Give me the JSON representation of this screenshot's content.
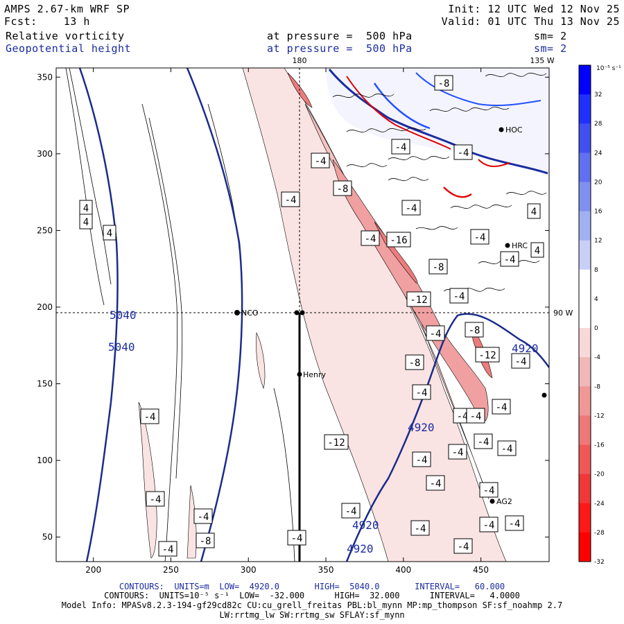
{
  "header": {
    "model": "AMPS 2.67-km WRF SP",
    "fcst": "Fcst:    13 h",
    "init": "Init: 12 UTC Wed 12 Nov 25",
    "valid": "Valid: 01 UTC Thu 13 Nov 25",
    "field1": "Relative vorticity",
    "level1": "at pressure =  500 hPa",
    "sm1": "sm= 2",
    "field2": "Geopotential height",
    "level2": "at pressure =  500 hPa",
    "sm2": "sm= 2"
  },
  "footer": {
    "line1": "CONTOURS:  UNITS=m  LOW=  4920.0       HIGH=  5040.0       INTERVAL=   60.000",
    "line2": "CONTOURS:  UNITS=10⁻⁵ s⁻¹  LOW=  -32.000      HIGH=  32.000      INTERVAL=   4.0000",
    "line3": "Model Info: MPASv8.2.3-194-gf29cd82c CU:cu_grell_freitas PBL:bl_mynn MP:mp_thompson SF:sf_noahmp 2.7",
    "line4": "LW:rrtmg_lw SW:rrtmg_sw SFLAY:sf_mynn"
  },
  "colorbar": {
    "units": "10⁻⁵ s⁻¹",
    "ticks": [
      "32",
      "28",
      "24",
      "20",
      "16",
      "12",
      "8",
      "4",
      "0",
      "-4",
      "-8",
      "-12",
      "-16",
      "-20",
      "-24",
      "-28",
      "-32"
    ],
    "colors": [
      "#0000ff",
      "#2030ff",
      "#4050f0",
      "#6070f0",
      "#8090f0",
      "#a0b0f0",
      "#c8d0f8",
      "#ffffff",
      "#ffffff",
      "#f8d8d8",
      "#f0b8b8",
      "#f09898",
      "#f07878",
      "#f05858",
      "#f03838",
      "#ff1818",
      "#ff0000"
    ]
  },
  "chart_data": {
    "type": "contour-map",
    "xlabel": "",
    "ylabel": "",
    "xlim": [
      176,
      494
    ],
    "ylim": [
      34,
      356
    ],
    "x_ticks": [
      "200",
      "250",
      "300",
      "350",
      "400",
      "450"
    ],
    "y_ticks": [
      "50",
      "100",
      "150",
      "200",
      "250",
      "300",
      "350"
    ],
    "meridian_labels": [
      "180",
      "135 W",
      "90 W"
    ],
    "height_contours": [
      {
        "label": "5040",
        "values_m": 5040
      },
      {
        "label": "4920",
        "values_m": 4920
      }
    ],
    "height_labels": [
      "5040",
      "5040",
      "4920",
      "4920",
      "4920",
      "4920"
    ],
    "vorticity_labels": [
      "4",
      "4",
      "4",
      "4",
      "4",
      "-4",
      "-4",
      "-4",
      "-8",
      "-4",
      "-16",
      "-4",
      "-4",
      "-8",
      "-4",
      "-4",
      "-12",
      "-4",
      "-8",
      "-8",
      "-12",
      "-4",
      "-4",
      "-4",
      "-4",
      "-4",
      "-4",
      "-12",
      "-4",
      "-4",
      "-4",
      "-4",
      "-4",
      "-4",
      "-4",
      "-4",
      "-4",
      "-4",
      "-4",
      "-4",
      "-4",
      "-8",
      "-4",
      "-4",
      "-8",
      "-4",
      "-4"
    ],
    "stations": [
      "NCO",
      "Henry",
      "HRC",
      "AG2",
      "HOC"
    ]
  }
}
